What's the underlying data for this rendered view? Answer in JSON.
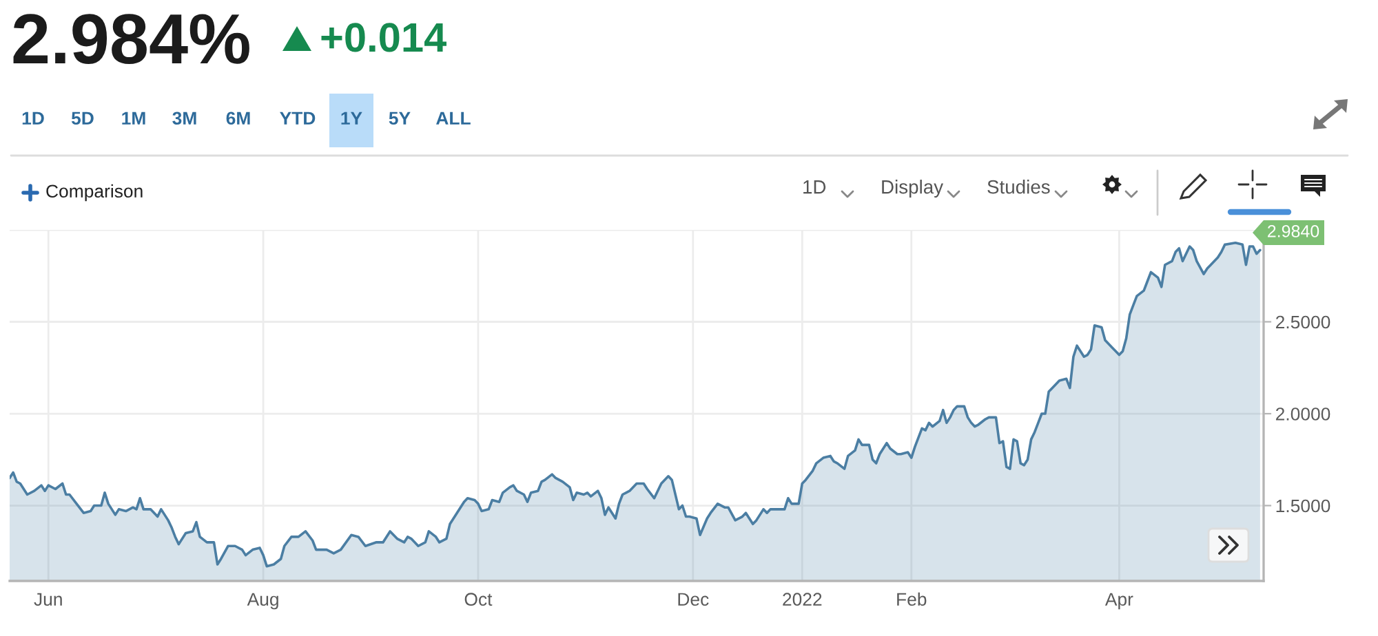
{
  "chart_data": {
    "type": "area",
    "title": "2.984%",
    "subtitle": "+0.014",
    "annotations": [
      "1D",
      "5D",
      "1M",
      "3M",
      "6M",
      "YTD",
      "1Y",
      "5Y",
      "ALL",
      "Comparison",
      "1D",
      "Display",
      "Studies",
      "2.9840"
    ],
    "x": [
      "2021-05-21",
      "2021-05-22",
      "2021-05-23",
      "2021-05-24",
      "2021-05-26",
      "2021-05-28",
      "2021-05-30",
      "2021-05-31",
      "2021-06-01",
      "2021-06-03",
      "2021-06-05",
      "2021-06-06",
      "2021-06-07",
      "2021-06-09",
      "2021-06-11",
      "2021-06-13",
      "2021-06-14",
      "2021-06-16",
      "2021-06-17",
      "2021-06-18",
      "2021-06-20",
      "2021-06-21",
      "2021-06-23",
      "2021-06-25",
      "2021-06-26",
      "2021-06-27",
      "2021-06-28",
      "2021-06-30",
      "2021-07-02",
      "2021-07-03",
      "2021-07-05",
      "2021-07-06",
      "2021-07-07",
      "2021-07-08",
      "2021-07-10",
      "2021-07-12",
      "2021-07-13",
      "2021-07-14",
      "2021-07-16",
      "2021-07-18",
      "2021-07-19",
      "2021-07-20",
      "2021-07-22",
      "2021-07-24",
      "2021-07-26",
      "2021-07-27",
      "2021-07-29",
      "2021-07-31",
      "2021-08-01",
      "2021-08-02",
      "2021-08-04",
      "2021-08-06",
      "2021-08-07",
      "2021-08-09",
      "2021-08-11",
      "2021-08-13",
      "2021-08-15",
      "2021-08-16",
      "2021-08-19",
      "2021-08-21",
      "2021-08-23",
      "2021-08-26",
      "2021-08-28",
      "2021-08-30",
      "2021-09-02",
      "2021-09-04",
      "2021-09-06",
      "2021-09-08",
      "2021-09-10",
      "2021-09-11",
      "2021-09-12",
      "2021-09-14",
      "2021-09-16",
      "2021-09-17",
      "2021-09-19",
      "2021-09-20",
      "2021-09-22",
      "2021-09-23",
      "2021-09-25",
      "2021-09-27",
      "2021-09-28",
      "2021-09-30",
      "2021-10-01",
      "2021-10-02",
      "2021-10-04",
      "2021-10-05",
      "2021-10-07",
      "2021-10-08",
      "2021-10-10",
      "2021-10-11",
      "2021-10-12",
      "2021-10-14",
      "2021-10-15",
      "2021-10-16",
      "2021-10-18",
      "2021-10-19",
      "2021-10-20",
      "2021-10-22",
      "2021-10-23",
      "2021-10-25",
      "2021-10-27",
      "2021-10-28",
      "2021-10-29",
      "2021-10-31",
      "2021-11-01",
      "2021-11-02",
      "2021-11-04",
      "2021-11-05",
      "2021-11-06",
      "2021-11-07",
      "2021-11-09",
      "2021-11-10",
      "2021-11-11",
      "2021-11-12",
      "2021-11-13",
      "2021-11-15",
      "2021-11-17",
      "2021-11-18",
      "2021-11-20",
      "2021-11-22",
      "2021-11-24",
      "2021-11-25",
      "2021-11-27",
      "2021-11-28",
      "2021-11-29",
      "2021-11-30",
      "2021-12-02",
      "2021-12-03",
      "2021-12-05",
      "2021-12-06",
      "2021-12-08",
      "2021-12-10",
      "2021-12-11",
      "2021-12-13",
      "2021-12-15",
      "2021-12-16",
      "2021-12-17",
      "2021-12-18",
      "2021-12-19",
      "2021-12-21",
      "2021-12-22",
      "2021-12-23",
      "2021-12-25",
      "2021-12-27",
      "2021-12-28",
      "2021-12-29",
      "2021-12-31",
      "2022-01-01",
      "2022-01-02",
      "2022-01-04",
      "2022-01-05",
      "2022-01-07",
      "2022-01-09",
      "2022-01-10",
      "2022-01-11",
      "2022-01-13",
      "2022-01-14",
      "2022-01-16",
      "2022-01-17",
      "2022-01-18",
      "2022-01-20",
      "2022-01-21",
      "2022-01-22",
      "2022-01-23",
      "2022-01-25",
      "2022-01-26",
      "2022-01-28",
      "2022-01-29",
      "2022-01-31",
      "2022-02-01",
      "2022-02-02",
      "2022-02-04",
      "2022-02-05",
      "2022-02-06",
      "2022-02-07",
      "2022-02-09",
      "2022-02-10",
      "2022-02-11",
      "2022-02-12",
      "2022-02-13",
      "2022-02-14",
      "2022-02-16",
      "2022-02-17",
      "2022-02-18",
      "2022-02-19",
      "2022-02-20",
      "2022-02-22",
      "2022-02-23",
      "2022-02-25",
      "2022-02-26",
      "2022-02-27",
      "2022-02-28",
      "2022-03-01",
      "2022-03-02",
      "2022-03-03",
      "2022-03-04",
      "2022-03-05",
      "2022-03-06",
      "2022-03-07",
      "2022-03-08",
      "2022-03-09",
      "2022-03-10",
      "2022-03-11",
      "2022-03-12",
      "2022-03-13",
      "2022-03-15",
      "2022-03-17",
      "2022-03-18",
      "2022-03-19",
      "2022-03-20",
      "2022-03-22",
      "2022-03-23",
      "2022-03-24",
      "2022-03-25",
      "2022-03-27",
      "2022-03-28",
      "2022-03-30",
      "2022-04-01",
      "2022-04-02",
      "2022-04-03",
      "2022-04-04",
      "2022-04-05",
      "2022-04-06",
      "2022-04-08",
      "2022-04-09",
      "2022-04-10",
      "2022-04-12",
      "2022-04-13",
      "2022-04-14",
      "2022-04-16",
      "2022-04-17",
      "2022-04-18",
      "2022-04-19",
      "2022-04-21",
      "2022-04-22",
      "2022-04-23",
      "2022-04-25",
      "2022-04-26",
      "2022-04-27",
      "2022-04-29",
      "2022-04-30",
      "2022-05-01",
      "2022-05-04",
      "2022-05-06",
      "2022-05-07",
      "2022-05-08",
      "2022-05-09",
      "2022-05-10",
      "2022-05-11"
    ],
    "series": [
      {
        "color": "#4b7ea3",
        "values": [
          1.65,
          1.68,
          1.63,
          1.62,
          1.56,
          1.58,
          1.61,
          1.58,
          1.61,
          1.59,
          1.62,
          1.56,
          1.56,
          1.51,
          1.46,
          1.47,
          1.5,
          1.5,
          1.57,
          1.51,
          1.45,
          1.48,
          1.47,
          1.49,
          1.48,
          1.54,
          1.48,
          1.48,
          1.44,
          1.48,
          1.42,
          1.38,
          1.33,
          1.29,
          1.35,
          1.36,
          1.41,
          1.33,
          1.3,
          1.3,
          1.18,
          1.21,
          1.28,
          1.28,
          1.26,
          1.23,
          1.26,
          1.27,
          1.23,
          1.17,
          1.18,
          1.21,
          1.28,
          1.33,
          1.33,
          1.36,
          1.31,
          1.26,
          1.26,
          1.24,
          1.26,
          1.34,
          1.33,
          1.28,
          1.3,
          1.3,
          1.36,
          1.32,
          1.3,
          1.33,
          1.32,
          1.28,
          1.3,
          1.36,
          1.33,
          1.3,
          1.32,
          1.4,
          1.46,
          1.52,
          1.54,
          1.53,
          1.51,
          1.47,
          1.48,
          1.53,
          1.52,
          1.57,
          1.6,
          1.61,
          1.58,
          1.56,
          1.52,
          1.57,
          1.58,
          1.63,
          1.64,
          1.67,
          1.65,
          1.63,
          1.6,
          1.53,
          1.57,
          1.56,
          1.57,
          1.55,
          1.58,
          1.54,
          1.45,
          1.49,
          1.43,
          1.51,
          1.56,
          1.57,
          1.58,
          1.62,
          1.62,
          1.59,
          1.54,
          1.62,
          1.66,
          1.64,
          1.48,
          1.5,
          1.44,
          1.44,
          1.43,
          1.34,
          1.43,
          1.46,
          1.51,
          1.49,
          1.49,
          1.42,
          1.44,
          1.46,
          1.43,
          1.4,
          1.42,
          1.48,
          1.46,
          1.48,
          1.48,
          1.48,
          1.54,
          1.51,
          1.51,
          1.62,
          1.64,
          1.69,
          1.73,
          1.76,
          1.77,
          1.74,
          1.73,
          1.7,
          1.77,
          1.8,
          1.86,
          1.83,
          1.83,
          1.75,
          1.73,
          1.78,
          1.84,
          1.81,
          1.78,
          1.78,
          1.79,
          1.76,
          1.82,
          1.92,
          1.91,
          1.95,
          1.93,
          1.96,
          2.02,
          1.95,
          1.98,
          2.02,
          2.04,
          2.04,
          1.98,
          1.95,
          1.93,
          1.94,
          1.97,
          1.98,
          1.98,
          1.84,
          1.85,
          1.71,
          1.7,
          1.86,
          1.85,
          1.73,
          1.72,
          1.75,
          1.86,
          1.9,
          1.95,
          2.0,
          2.0,
          2.12,
          2.14,
          2.18,
          2.19,
          2.14,
          2.31,
          2.37,
          2.31,
          2.32,
          2.35,
          2.48,
          2.47,
          2.4,
          2.36,
          2.32,
          2.34,
          2.41,
          2.54,
          2.59,
          2.64,
          2.67,
          2.72,
          2.77,
          2.74,
          2.69,
          2.81,
          2.83,
          2.88,
          2.9,
          2.83,
          2.91,
          2.89,
          2.83,
          2.76,
          2.79,
          2.81,
          2.85,
          2.88,
          2.92,
          2.93,
          2.92,
          2.81,
          2.91,
          2.91,
          2.87,
          2.89
        ]
      }
    ],
    "xlim": [
      "2021-05-21",
      "2022-05-12"
    ],
    "xticks": [
      {
        "value": "2021-06-01",
        "label": "Jun"
      },
      {
        "value": "2021-08-01",
        "label": "Aug"
      },
      {
        "value": "2021-10-01",
        "label": "Oct"
      },
      {
        "value": "2021-12-01",
        "label": "Dec"
      },
      {
        "value": "2022-01-01",
        "label": "2022"
      },
      {
        "value": "2022-02-01",
        "label": "Feb"
      },
      {
        "value": "2022-04-01",
        "label": "Apr"
      }
    ],
    "ylim": [
      1.09,
      3.0
    ],
    "yticks": [
      {
        "value": 1.5,
        "label": "1.5000"
      },
      {
        "value": 2.0,
        "label": "2.0000"
      },
      {
        "value": 2.5,
        "label": "2.5000"
      },
      {
        "value": 3.0,
        "label": null
      }
    ],
    "grid": true
  }
}
